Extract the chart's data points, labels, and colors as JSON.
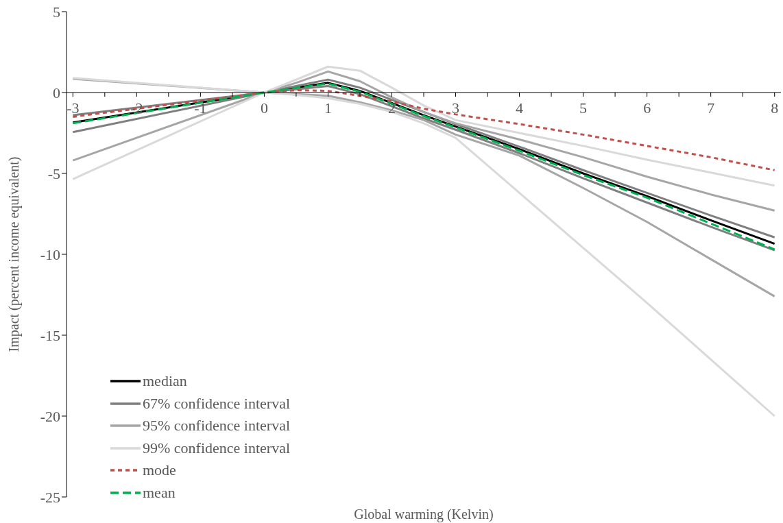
{
  "chart_data": {
    "type": "line",
    "xlabel": "Global warming (Kelvin)",
    "ylabel": "Impact (percent income equivalent)",
    "x": [
      -3,
      0,
      0.5,
      1,
      1.5,
      2,
      2.5,
      3,
      4,
      5,
      6,
      7,
      8
    ],
    "xlim": [
      -3.1,
      8.1
    ],
    "xticks": [
      -3,
      {
        "value": -2.5,
        "label": null
      },
      -2,
      {
        "value": -1.5,
        "label": null
      },
      -1,
      {
        "value": -0.5,
        "label": null
      },
      0,
      {
        "value": 0.5,
        "label": null
      },
      1,
      {
        "value": 1.5,
        "label": null
      },
      2,
      {
        "value": 2.5,
        "label": null
      },
      3,
      {
        "value": 3.5,
        "label": null
      },
      4,
      {
        "value": 4.5,
        "label": null
      },
      5,
      {
        "value": 5.5,
        "label": null
      },
      6,
      {
        "value": 6.5,
        "label": null
      },
      7,
      {
        "value": 7.5,
        "label": null
      },
      8
    ],
    "ylim": [
      -25,
      5
    ],
    "yticks": [
      -25,
      -20,
      -15,
      -10,
      -5,
      0,
      5
    ],
    "grid": false,
    "legend": "bottom left",
    "marker": "none",
    "series": [
      {
        "name": "median",
        "color": "#000000",
        "line_style": "solid",
        "values": [
          -1.85,
          0,
          0.3,
          0.6,
          0.1,
          -0.65,
          -1.4,
          -2.1,
          -3.5,
          -5.0,
          -6.4,
          -7.9,
          -9.35
        ]
      },
      {
        "name": "67% confidence interval",
        "color": "#7f7f7f",
        "line_style": "solid",
        "values": [
          -1.4,
          0,
          0.4,
          0.8,
          0.3,
          -0.45,
          -1.2,
          -1.95,
          -3.35,
          -4.8,
          -6.2,
          -7.6,
          -8.95
        ]
      },
      {
        "color": "#7f7f7f",
        "line_style": "solid",
        "values": [
          -2.45,
          0,
          0.2,
          0.4,
          -0.1,
          -0.85,
          -1.6,
          -2.3,
          -3.75,
          -5.3,
          -6.8,
          -8.3,
          -9.75
        ]
      },
      {
        "name": "95% confidence interval",
        "color": "#a6a6a6",
        "line_style": "solid",
        "values": [
          0.85,
          0,
          0.6,
          1.3,
          0.7,
          -0.3,
          -1.2,
          -1.9,
          -2.9,
          -4.0,
          -5.2,
          -6.3,
          -7.3
        ]
      },
      {
        "color": "#a6a6a6",
        "line_style": "solid",
        "values": [
          -4.2,
          0,
          -0.1,
          -0.2,
          -0.6,
          -1.1,
          -1.7,
          -2.6,
          -3.9,
          -5.9,
          -8.0,
          -10.3,
          -12.6
        ]
      },
      {
        "name": "99% confidence interval",
        "color": "#d9d9d9",
        "line_style": "solid",
        "values": [
          0.9,
          0,
          0.8,
          1.6,
          1.35,
          0.3,
          -0.8,
          -1.7,
          -2.5,
          -3.3,
          -4.15,
          -4.95,
          -5.75
        ]
      },
      {
        "color": "#d9d9d9",
        "line_style": "solid",
        "values": [
          -5.35,
          0,
          -0.15,
          -0.35,
          -0.7,
          -1.2,
          -1.9,
          -2.8,
          -6.2,
          -9.6,
          -13.0,
          -16.5,
          -20.0
        ]
      },
      {
        "name": "mode",
        "color": "#c0504d",
        "line_style": "dotted",
        "values": [
          -1.5,
          0,
          0.15,
          0.1,
          -0.2,
          -0.55,
          -1.0,
          -1.35,
          -1.95,
          -2.6,
          -3.3,
          -4.0,
          -4.8
        ]
      },
      {
        "name": "mean",
        "color": "#00b050",
        "line_style": "dashed",
        "values": [
          -1.9,
          0,
          0.3,
          0.55,
          0.05,
          -0.7,
          -1.45,
          -2.15,
          -3.6,
          -5.1,
          -6.5,
          -8.1,
          -9.7
        ]
      }
    ]
  }
}
